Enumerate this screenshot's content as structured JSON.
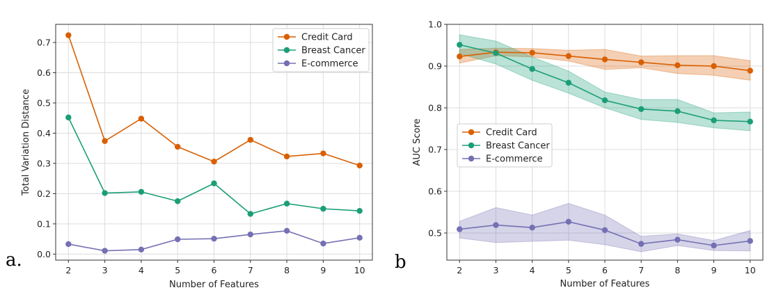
{
  "chart_data": [
    {
      "panel_label": "a.",
      "type": "line",
      "title": "",
      "xlabel": "Number of Features",
      "ylabel": "Total Variation Distance",
      "x": [
        2,
        3,
        4,
        5,
        6,
        7,
        8,
        9,
        10
      ],
      "xlim": [
        1.65,
        10.35
      ],
      "ylim": [
        -0.02,
        0.76
      ],
      "yticks": [
        "0.0",
        "0.1",
        "0.2",
        "0.3",
        "0.4",
        "0.5",
        "0.6",
        "0.7"
      ],
      "grid": true,
      "legend": "top-right",
      "series": [
        {
          "name": "Credit Card",
          "color": "#d95f02",
          "values": [
            0.724,
            0.374,
            0.448,
            0.355,
            0.306,
            0.378,
            0.323,
            0.333,
            0.293
          ]
        },
        {
          "name": "Breast Cancer",
          "color": "#1b9e77",
          "values": [
            0.452,
            0.202,
            0.206,
            0.175,
            0.234,
            0.133,
            0.167,
            0.15,
            0.143
          ]
        },
        {
          "name": "E-commerce",
          "color": "#7570b3",
          "values": [
            0.033,
            0.011,
            0.015,
            0.049,
            0.051,
            0.065,
            0.077,
            0.035,
            0.054
          ]
        }
      ]
    },
    {
      "panel_label": "b",
      "type": "line",
      "title": "",
      "xlabel": "Number of Features",
      "ylabel": "AUC Score",
      "x": [
        2,
        3,
        4,
        5,
        6,
        7,
        8,
        9,
        10
      ],
      "xlim": [
        1.65,
        10.35
      ],
      "ylim": [
        0.435,
        1.0
      ],
      "yticks": [
        "0.5",
        "0.6",
        "0.7",
        "0.8",
        "0.9",
        "1.0"
      ],
      "grid": true,
      "legend": "center-left",
      "series": [
        {
          "name": "Credit Card",
          "color": "#d95f02",
          "values": [
            0.923,
            0.933,
            0.932,
            0.924,
            0.916,
            0.909,
            0.902,
            0.9,
            0.889
          ],
          "lower": [
            0.907,
            0.925,
            0.922,
            0.912,
            0.892,
            0.896,
            0.882,
            0.878,
            0.866
          ],
          "upper": [
            0.94,
            0.943,
            0.942,
            0.938,
            0.94,
            0.924,
            0.925,
            0.925,
            0.913
          ]
        },
        {
          "name": "Breast Cancer",
          "color": "#1b9e77",
          "values": [
            0.951,
            0.931,
            0.893,
            0.86,
            0.818,
            0.797,
            0.792,
            0.77,
            0.767
          ],
          "lower": [
            0.93,
            0.905,
            0.866,
            0.835,
            0.8,
            0.772,
            0.765,
            0.752,
            0.745
          ],
          "upper": [
            0.975,
            0.96,
            0.922,
            0.888,
            0.838,
            0.82,
            0.82,
            0.788,
            0.79
          ]
        },
        {
          "name": "E-commerce",
          "color": "#7570b3",
          "values": [
            0.509,
            0.519,
            0.513,
            0.527,
            0.507,
            0.474,
            0.484,
            0.47,
            0.481
          ],
          "lower": [
            0.488,
            0.477,
            0.48,
            0.483,
            0.472,
            0.455,
            0.47,
            0.458,
            0.457
          ],
          "upper": [
            0.528,
            0.561,
            0.543,
            0.571,
            0.543,
            0.492,
            0.498,
            0.482,
            0.506
          ]
        }
      ]
    }
  ]
}
